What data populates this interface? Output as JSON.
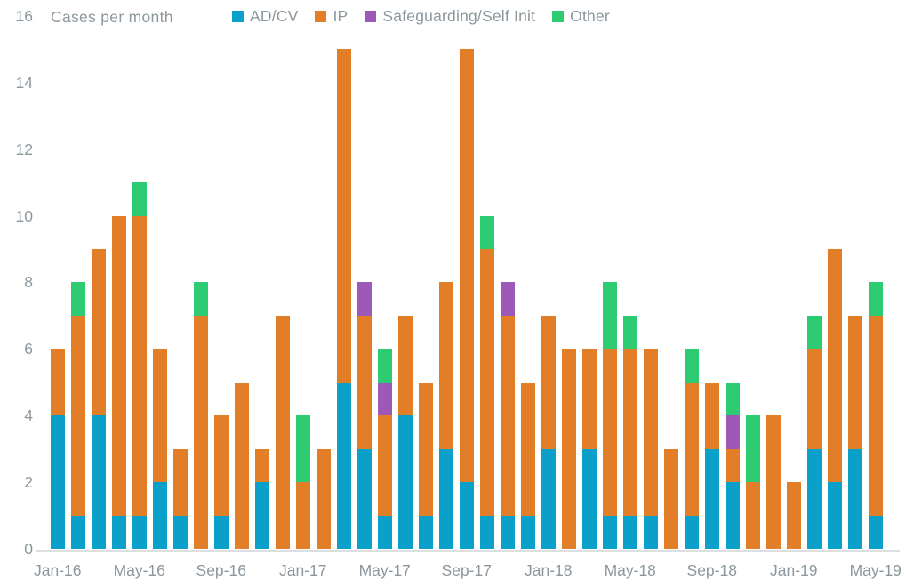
{
  "chart_data": {
    "type": "bar",
    "stacked": true,
    "title": "Cases per month",
    "grid": false,
    "legend_position": "top",
    "ylim": [
      0,
      16
    ],
    "y_ticks": [
      0,
      2,
      4,
      6,
      8,
      10,
      12,
      14,
      16
    ],
    "x_tick_labels": [
      "Jan-16",
      "May-16",
      "Sep-16",
      "Jan-17",
      "May-17",
      "Sep-17",
      "Jan-18",
      "May-18",
      "Sep-18",
      "Jan-19",
      "May-19"
    ],
    "x_tick_every": 4,
    "categories": [
      "Jan-16",
      "Feb-16",
      "Mar-16",
      "Apr-16",
      "May-16",
      "Jun-16",
      "Jul-16",
      "Aug-16",
      "Sep-16",
      "Oct-16",
      "Nov-16",
      "Dec-16",
      "Jan-17",
      "Feb-17",
      "Mar-17",
      "Apr-17",
      "May-17",
      "Jun-17",
      "Jul-17",
      "Aug-17",
      "Sep-17",
      "Oct-17",
      "Nov-17",
      "Dec-17",
      "Jan-18",
      "Feb-18",
      "Mar-18",
      "Apr-18",
      "May-18",
      "Jun-18",
      "Jul-18",
      "Aug-18",
      "Sep-18",
      "Oct-18",
      "Nov-18",
      "Dec-18",
      "Jan-19",
      "Feb-19",
      "Mar-19",
      "Apr-19",
      "May-19"
    ],
    "series": [
      {
        "name": "AD/CV",
        "color": "#0AA0C9",
        "values": [
          4,
          1,
          4,
          1,
          1,
          2,
          1,
          0,
          1,
          0,
          2,
          0,
          0,
          0,
          5,
          3,
          1,
          4,
          1,
          3,
          2,
          1,
          1,
          1,
          3,
          0,
          3,
          1,
          1,
          1,
          0,
          1,
          3,
          2,
          0,
          0,
          0,
          3,
          2,
          3,
          1
        ]
      },
      {
        "name": "IP",
        "color": "#E27E28",
        "values": [
          2,
          6,
          5,
          9,
          9,
          4,
          2,
          7,
          3,
          5,
          1,
          7,
          2,
          3,
          10,
          4,
          3,
          3,
          4,
          5,
          13,
          8,
          6,
          4,
          4,
          6,
          3,
          5,
          5,
          5,
          3,
          4,
          2,
          1,
          2,
          4,
          2,
          3,
          7,
          4,
          6
        ]
      },
      {
        "name": "Safeguarding/Self Init",
        "color": "#9C59B8",
        "values": [
          0,
          0,
          0,
          0,
          0,
          0,
          0,
          0,
          0,
          0,
          0,
          0,
          0,
          0,
          0,
          1,
          1,
          0,
          0,
          0,
          0,
          0,
          1,
          0,
          0,
          0,
          0,
          0,
          0,
          0,
          0,
          0,
          0,
          1,
          0,
          0,
          0,
          0,
          0,
          0,
          0
        ]
      },
      {
        "name": "Other",
        "color": "#2DCB72",
        "values": [
          0,
          1,
          0,
          0,
          1,
          0,
          0,
          1,
          0,
          0,
          0,
          0,
          2,
          0,
          0,
          0,
          1,
          0,
          0,
          0,
          0,
          1,
          0,
          0,
          0,
          0,
          0,
          2,
          1,
          0,
          0,
          1,
          0,
          1,
          2,
          0,
          0,
          1,
          0,
          0,
          1
        ]
      }
    ],
    "totals": [
      6,
      8,
      9,
      10,
      11,
      6,
      3,
      8,
      4,
      5,
      3,
      7,
      4,
      3,
      15,
      8,
      6,
      7,
      5,
      8,
      15,
      10,
      8,
      5,
      7,
      6,
      6,
      8,
      7,
      6,
      3,
      6,
      5,
      5,
      4,
      4,
      2,
      7,
      9,
      7,
      8
    ]
  },
  "colors": {
    "axis_text": "#8C979D",
    "axis_line": "#DBDFE0",
    "background": "#FFFFFF"
  }
}
